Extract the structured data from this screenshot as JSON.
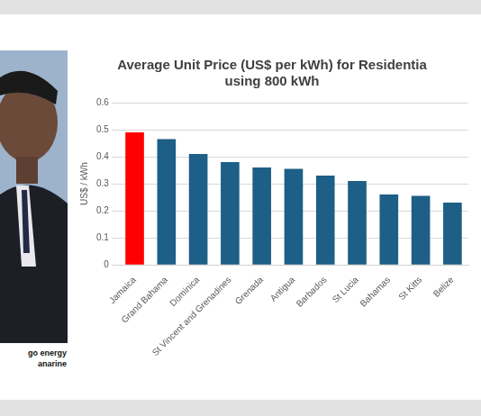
{
  "chart_data": {
    "type": "bar",
    "title": [
      "Average Unit Price (US$ per kWh) for Residentia",
      "using 800 kWh"
    ],
    "y_label": "US$ / kWh",
    "categories": [
      "Jamaica",
      "Grand Bahama",
      "Dominica",
      "St Vincent and Grenadines",
      "Grenada",
      "Antigua",
      "Barbados",
      "St Lucia",
      "Bahamas",
      "St Kitts",
      "Belize"
    ],
    "values": [
      0.49,
      0.465,
      0.41,
      0.38,
      0.36,
      0.355,
      0.33,
      0.31,
      0.26,
      0.255,
      0.23
    ],
    "colors": [
      "#ff0000",
      "#1d5f86",
      "#1d5f86",
      "#1d5f86",
      "#1d5f86",
      "#1d5f86",
      "#1d5f86",
      "#1d5f86",
      "#1d5f86",
      "#1d5f86",
      "#1d5f86"
    ],
    "ylim": [
      0,
      0.6
    ],
    "yticks": [
      0,
      0.1,
      0.2,
      0.3,
      0.4,
      0.5,
      0.6
    ],
    "grid": true
  },
  "caption": {
    "lines": [
      "go energy",
      "anarine"
    ]
  }
}
